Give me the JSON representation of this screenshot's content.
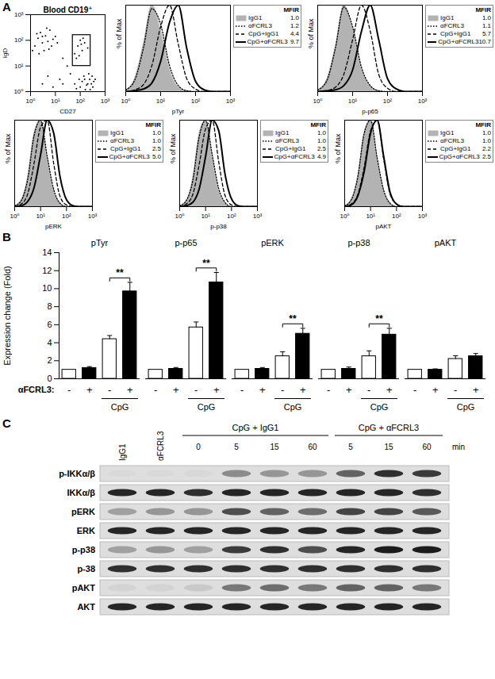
{
  "panel_letters": [
    "A",
    "B",
    "C"
  ],
  "chart_data": [
    {
      "type": "scatter",
      "title": "Blood CD19⁺",
      "x_label": "CD27",
      "y_label": "IgD",
      "log": true,
      "xlim": [
        1,
        1000
      ],
      "ylim": [
        1,
        1000
      ],
      "xticks": [
        {
          "value": 1,
          "label": "10⁰"
        },
        {
          "value": 10,
          "label": "10¹"
        },
        {
          "value": 100,
          "label": "10²"
        },
        {
          "value": 1000,
          "label": "10³"
        }
      ],
      "yticks": [
        {
          "value": 1,
          "label": "10⁰"
        },
        {
          "value": 10,
          "label": "10¹"
        },
        {
          "value": 100,
          "label": "10²"
        },
        {
          "value": 1000,
          "label": "10³"
        }
      ],
      "color": "#000000",
      "points": [
        [
          1.5,
          60
        ],
        [
          2,
          120
        ],
        [
          3,
          80
        ],
        [
          2.5,
          200
        ],
        [
          4,
          150
        ],
        [
          5,
          90
        ],
        [
          1.2,
          40
        ],
        [
          6,
          250
        ],
        [
          3.5,
          40
        ],
        [
          8,
          110
        ],
        [
          2.2,
          30
        ],
        [
          7,
          60
        ],
        [
          4.5,
          300
        ],
        [
          1.8,
          180
        ],
        [
          10,
          140
        ],
        [
          5.5,
          45
        ],
        [
          3,
          140
        ],
        [
          12,
          80
        ],
        [
          60,
          30
        ],
        [
          80,
          60
        ],
        [
          120,
          40
        ],
        [
          100,
          100
        ],
        [
          70,
          20
        ],
        [
          150,
          80
        ],
        [
          90,
          25
        ],
        [
          130,
          120
        ],
        [
          200,
          50
        ],
        [
          110,
          70
        ],
        [
          60,
          2
        ],
        [
          100,
          1.5
        ],
        [
          150,
          3
        ],
        [
          200,
          2
        ],
        [
          250,
          1.2
        ],
        [
          300,
          4
        ],
        [
          120,
          2.5
        ],
        [
          180,
          1.8
        ],
        [
          220,
          5
        ],
        [
          90,
          3
        ],
        [
          350,
          2.5
        ],
        [
          160,
          1.2
        ],
        [
          280,
          2
        ],
        [
          400,
          3
        ],
        [
          140,
          4
        ],
        [
          240,
          3
        ],
        [
          70,
          1.3
        ],
        [
          320,
          1.5
        ],
        [
          3,
          2
        ],
        [
          5,
          4
        ],
        [
          8,
          1.5
        ],
        [
          15,
          3
        ],
        [
          20,
          2
        ],
        [
          30,
          10
        ],
        [
          20,
          20
        ],
        [
          40,
          5
        ]
      ],
      "gate": {
        "x": [
          50,
          260
        ],
        "y": [
          10,
          160
        ]
      }
    },
    {
      "type": "line",
      "x_label": "pTyr",
      "y_label": "% of Max",
      "log": "x",
      "tick_labels": "x",
      "mfir_header": "MFIR",
      "xlim": [
        1,
        1000
      ],
      "ylim": [
        0,
        100
      ],
      "xticks": [
        {
          "value": 1,
          "label": "10⁰"
        },
        {
          "value": 10,
          "label": "10¹"
        },
        {
          "value": 100,
          "label": "10²"
        },
        {
          "value": 1000,
          "label": "10³"
        }
      ],
      "x": [
        1,
        1.8,
        3.2,
        5.6,
        10,
        18,
        32,
        56,
        100,
        180,
        320,
        560,
        1000
      ],
      "series": [
        {
          "name": "IgG1",
          "type": "area",
          "color": "#b3b3b3",
          "line_style": "solid",
          "mfir": "1.0",
          "values": [
            2,
            15,
            55,
            100,
            70,
            25,
            5,
            1,
            0,
            0,
            0,
            0,
            0
          ]
        },
        {
          "name": "αFCRL3",
          "color": "#000000",
          "line_style": "dotted",
          "mfir": "1.2",
          "values": [
            2,
            13,
            50,
            96,
            78,
            30,
            7,
            1,
            0,
            0,
            0,
            0,
            0
          ]
        },
        {
          "name": "CpG+IgG1",
          "color": "#000000",
          "line_style": "dashed",
          "mfir": "4.4",
          "values": [
            0,
            2,
            8,
            30,
            75,
            100,
            55,
            15,
            3,
            0,
            0,
            0,
            0
          ]
        },
        {
          "name": "CpG+αFCRL3",
          "color": "#000000",
          "line_style": "solid",
          "mfir": "9.7",
          "values": [
            0,
            1,
            3,
            10,
            35,
            80,
            100,
            50,
            12,
            2,
            0,
            0,
            0
          ]
        }
      ]
    },
    {
      "type": "line",
      "x_label": "p-p65",
      "y_label": "% of Max",
      "log": "x",
      "tick_labels": "x",
      "mfir_header": "MFIR",
      "xlim": [
        1,
        1000
      ],
      "ylim": [
        0,
        100
      ],
      "xticks": [
        {
          "value": 1,
          "label": "10⁰"
        },
        {
          "value": 10,
          "label": "10¹"
        },
        {
          "value": 100,
          "label": "10²"
        },
        {
          "value": 1000,
          "label": "10³"
        }
      ],
      "x": [
        1,
        1.8,
        3.2,
        5.6,
        10,
        18,
        32,
        56,
        100,
        180,
        320,
        560,
        1000
      ],
      "series": [
        {
          "name": "IgG1",
          "type": "area",
          "color": "#b3b3b3",
          "line_style": "solid",
          "mfir": "1.0",
          "values": [
            2,
            14,
            52,
            100,
            72,
            26,
            6,
            1,
            0,
            0,
            0,
            0,
            0
          ]
        },
        {
          "name": "αFCRL3",
          "color": "#000000",
          "line_style": "dotted",
          "mfir": "1.1",
          "values": [
            2,
            12,
            50,
            98,
            75,
            28,
            7,
            1,
            0,
            0,
            0,
            0,
            0
          ]
        },
        {
          "name": "CpG+IgG1",
          "color": "#000000",
          "line_style": "dashed",
          "mfir": "5.7",
          "values": [
            0,
            1,
            5,
            20,
            60,
            100,
            70,
            20,
            4,
            0,
            0,
            0,
            0
          ]
        },
        {
          "name": "CpG+αFCRL3",
          "color": "#000000",
          "line_style": "solid",
          "mfir": "10.7",
          "values": [
            0,
            1,
            2,
            7,
            25,
            70,
            100,
            60,
            15,
            3,
            0,
            0,
            0
          ]
        }
      ]
    },
    {
      "type": "line",
      "x_label": "pERK",
      "y_label": "% of Max",
      "log": "x",
      "tick_labels": "x",
      "mfir_header": "MFIR",
      "xlim": [
        1,
        1000
      ],
      "ylim": [
        0,
        100
      ],
      "xticks": [
        {
          "value": 1,
          "label": "10⁰"
        },
        {
          "value": 10,
          "label": "10¹"
        },
        {
          "value": 100,
          "label": "10²"
        },
        {
          "value": 1000,
          "label": "10³"
        }
      ],
      "x": [
        1,
        1.8,
        3.2,
        5.6,
        10,
        18,
        32,
        56,
        100,
        180,
        320,
        560,
        1000
      ],
      "series": [
        {
          "name": "IgG1",
          "type": "area",
          "color": "#b3b3b3",
          "line_style": "solid",
          "mfir": "1.0",
          "values": [
            1,
            8,
            35,
            85,
            100,
            55,
            18,
            4,
            0,
            0,
            0,
            0,
            0
          ]
        },
        {
          "name": "αFCRL3",
          "color": "#000000",
          "line_style": "dotted",
          "mfir": "1.0",
          "values": [
            1,
            7,
            32,
            82,
            100,
            58,
            20,
            4,
            0,
            0,
            0,
            0,
            0
          ]
        },
        {
          "name": "CpG+IgG1",
          "color": "#000000",
          "line_style": "dashed",
          "mfir": "2.5",
          "values": [
            0,
            3,
            15,
            50,
            92,
            100,
            50,
            12,
            2,
            0,
            0,
            0,
            0
          ]
        },
        {
          "name": "CpG+αFCRL3",
          "color": "#000000",
          "line_style": "solid",
          "mfir": "5.0",
          "values": [
            0,
            1,
            6,
            22,
            60,
            100,
            85,
            35,
            8,
            1,
            0,
            0,
            0
          ]
        }
      ]
    },
    {
      "type": "line",
      "x_label": "p-p38",
      "y_label": "% of Max",
      "log": "x",
      "tick_labels": "x",
      "mfir_header": "MFIR",
      "xlim": [
        1,
        1000
      ],
      "ylim": [
        0,
        100
      ],
      "xticks": [
        {
          "value": 1,
          "label": "10⁰"
        },
        {
          "value": 10,
          "label": "10¹"
        },
        {
          "value": 100,
          "label": "10²"
        },
        {
          "value": 1000,
          "label": "10³"
        }
      ],
      "x": [
        1,
        1.8,
        3.2,
        5.6,
        10,
        18,
        32,
        56,
        100,
        180,
        320,
        560,
        1000
      ],
      "series": [
        {
          "name": "IgG1",
          "type": "area",
          "color": "#b3b3b3",
          "line_style": "solid",
          "mfir": "1.0",
          "values": [
            1,
            7,
            33,
            84,
            100,
            56,
            18,
            4,
            0,
            0,
            0,
            0,
            0
          ]
        },
        {
          "name": "αFCRL3",
          "color": "#000000",
          "line_style": "dotted",
          "mfir": "1.0",
          "values": [
            1,
            7,
            30,
            80,
            100,
            60,
            21,
            5,
            0,
            0,
            0,
            0,
            0
          ]
        },
        {
          "name": "CpG+IgG1",
          "color": "#000000",
          "line_style": "dashed",
          "mfir": "2.5",
          "values": [
            0,
            3,
            14,
            48,
            90,
            100,
            52,
            13,
            2,
            0,
            0,
            0,
            0
          ]
        },
        {
          "name": "CpG+αFCRL3",
          "color": "#000000",
          "line_style": "solid",
          "mfir": "4.9",
          "values": [
            0,
            1,
            5,
            20,
            58,
            100,
            88,
            38,
            9,
            1,
            0,
            0,
            0
          ]
        }
      ]
    },
    {
      "type": "line",
      "x_label": "pAKT",
      "y_label": "% of Max",
      "log": "x",
      "tick_labels": "x",
      "mfir_header": "MFIR",
      "xlim": [
        1,
        1000
      ],
      "ylim": [
        0,
        100
      ],
      "xticks": [
        {
          "value": 1,
          "label": "10⁰"
        },
        {
          "value": 10,
          "label": "10¹"
        },
        {
          "value": 100,
          "label": "10²"
        },
        {
          "value": 1000,
          "label": "10³"
        }
      ],
      "x": [
        1,
        1.8,
        3.2,
        5.6,
        10,
        18,
        32,
        56,
        100,
        180,
        320,
        560,
        1000
      ],
      "series": [
        {
          "name": "IgG1",
          "type": "area",
          "color": "#b3b3b3",
          "line_style": "solid",
          "mfir": "1.0",
          "values": [
            1,
            8,
            35,
            85,
            100,
            55,
            18,
            4,
            0,
            0,
            0,
            0,
            0
          ]
        },
        {
          "name": "αFCRL3",
          "color": "#000000",
          "line_style": "dotted",
          "mfir": "1.0",
          "values": [
            1,
            8,
            34,
            84,
            100,
            56,
            19,
            4,
            0,
            0,
            0,
            0,
            0
          ]
        },
        {
          "name": "CpG+IgG1",
          "color": "#000000",
          "line_style": "dashed",
          "mfir": "2.2",
          "values": [
            0,
            3,
            14,
            45,
            88,
            100,
            55,
            15,
            3,
            0,
            0,
            0,
            0
          ]
        },
        {
          "name": "CpG+αFCRL3",
          "color": "#000000",
          "line_style": "solid",
          "mfir": "2.5",
          "values": [
            0,
            2,
            12,
            40,
            85,
            100,
            58,
            17,
            3,
            0,
            0,
            0,
            0
          ]
        }
      ]
    },
    {
      "type": "bar",
      "y_label": "Expression change (Fold)",
      "ylim": [
        0,
        14
      ],
      "yticks": [
        0,
        2,
        4,
        6,
        8,
        10,
        12,
        14
      ],
      "categories": [
        "pTyr",
        "p-p65",
        "pERK",
        "p-p38",
        "pAKT"
      ],
      "bars": [
        {
          "afcrl3": "-",
          "cpg": false,
          "color": "#ffffff",
          "values": [
            1,
            1,
            1,
            1,
            1
          ],
          "errors": [
            0,
            0,
            0,
            0,
            0
          ]
        },
        {
          "afcrl3": "+",
          "cpg": false,
          "color": "#000000",
          "values": [
            1.2,
            1.1,
            1.1,
            1.1,
            1.0
          ],
          "errors": [
            0.15,
            0.15,
            0.15,
            0.2,
            0.1
          ]
        },
        {
          "afcrl3": "-",
          "cpg": true,
          "color": "#ffffff",
          "values": [
            4.4,
            5.7,
            2.5,
            2.5,
            2.2
          ],
          "errors": [
            0.4,
            0.6,
            0.5,
            0.6,
            0.35
          ]
        },
        {
          "afcrl3": "+",
          "cpg": true,
          "color": "#000000",
          "values": [
            9.7,
            10.7,
            5.0,
            4.9,
            2.5
          ],
          "errors": [
            1.0,
            1.1,
            0.6,
            0.7,
            0.3
          ]
        }
      ],
      "significance": [
        "**",
        "**",
        "**",
        "**",
        null
      ],
      "row_label": "αFCRL3:",
      "cpg_label": "CpG"
    }
  ],
  "blot": {
    "groups": [
      "CpG + IgG1",
      "CpG + αFCRL3"
    ],
    "time_unit": "min",
    "lanes": [
      {
        "label": "IgG1"
      },
      {
        "label": "αFCRL3"
      },
      {
        "group": 0,
        "time": 0
      },
      {
        "group": 0,
        "time": 5
      },
      {
        "group": 0,
        "time": 15
      },
      {
        "group": 0,
        "time": 60
      },
      {
        "group": 1,
        "time": 5
      },
      {
        "group": 1,
        "time": 15
      },
      {
        "group": 1,
        "time": 60
      }
    ],
    "rows": [
      {
        "label": "p-IKKα/β",
        "intensity": [
          0.02,
          0.02,
          0.03,
          0.4,
          0.35,
          0.35,
          0.6,
          0.85,
          0.8
        ]
      },
      {
        "label": "IKKα/β",
        "intensity": [
          0.9,
          0.9,
          0.85,
          0.9,
          0.9,
          0.9,
          0.9,
          0.9,
          0.85
        ]
      },
      {
        "label": "pERK",
        "intensity": [
          0.3,
          0.35,
          0.35,
          0.7,
          0.6,
          0.55,
          0.75,
          0.75,
          0.65
        ]
      },
      {
        "label": "ERK",
        "intensity": [
          0.9,
          0.9,
          0.9,
          0.9,
          0.9,
          0.9,
          0.9,
          0.9,
          0.9
        ]
      },
      {
        "label": "p-p38",
        "intensity": [
          0.3,
          0.35,
          0.3,
          0.8,
          0.85,
          0.7,
          0.9,
          0.95,
          0.95
        ]
      },
      {
        "label": "p-38",
        "intensity": [
          0.85,
          0.85,
          0.85,
          0.85,
          0.85,
          0.85,
          0.85,
          0.85,
          0.85
        ]
      },
      {
        "label": "pAKT",
        "intensity": [
          0.05,
          0.05,
          0.1,
          0.5,
          0.55,
          0.5,
          0.6,
          0.6,
          0.5
        ]
      },
      {
        "label": "AKT",
        "intensity": [
          0.9,
          0.9,
          0.9,
          0.9,
          0.9,
          0.9,
          0.9,
          0.9,
          0.9
        ]
      }
    ]
  }
}
